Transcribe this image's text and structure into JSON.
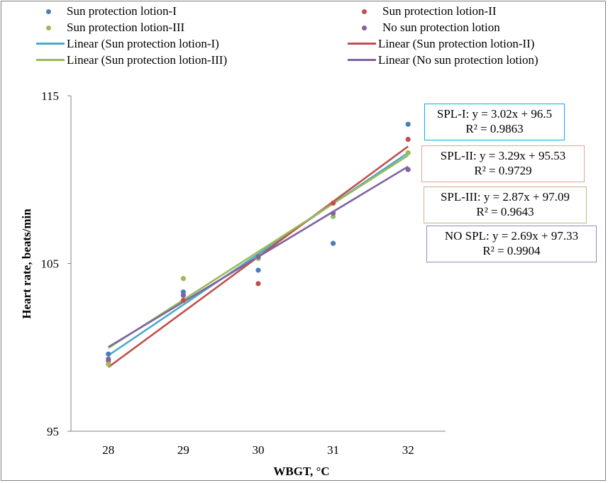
{
  "chart_data": {
    "type": "scatter",
    "xlabel": "WBGT, °C",
    "ylabel": "Heart rate, beats/min",
    "xlim": [
      27.5,
      32.5
    ],
    "ylim": [
      95,
      115
    ],
    "x_ticks": [
      "28",
      "29",
      "30",
      "31",
      "32"
    ],
    "y_ticks": [
      "95",
      "105",
      "115"
    ],
    "grid": false,
    "legend_position": "top",
    "x": [
      28,
      29,
      30,
      31,
      32
    ],
    "series": [
      {
        "name": "Sun protection lotion-I",
        "color": "#4a7ebb",
        "values": [
          99.6,
          103.3,
          104.6,
          106.2,
          113.3
        ],
        "trendline": {
          "name": "Linear (Sun protection lotion-I)",
          "color": "#4bacc6",
          "slope": 3.02,
          "intercept": 96.5
        }
      },
      {
        "name": "Sun protection lotion-II",
        "color": "#c0504d",
        "values": [
          99.2,
          102.8,
          103.8,
          108.6,
          112.4
        ],
        "trendline": {
          "name": "Linear (Sun protection lotion-II)",
          "color": "#c0504d",
          "slope": 3.29,
          "intercept": 95.53
        }
      },
      {
        "name": "Sun protection lotion-III",
        "color": "#9bbb59",
        "values": [
          99.0,
          104.1,
          105.3,
          107.8,
          111.6
        ],
        "trendline": {
          "name": "Linear (Sun protection lotion-III)",
          "color": "#9bbb59",
          "slope": 2.87,
          "intercept": 97.09
        }
      },
      {
        "name": "No sun protection lotion",
        "color": "#8064a2",
        "values": [
          99.3,
          103.1,
          105.4,
          108.0,
          110.6
        ],
        "trendline": {
          "name": "Linear (No sun protection lotion)",
          "color": "#8064a2",
          "slope": 2.69,
          "intercept": 97.33
        }
      }
    ],
    "annotations": [
      {
        "line1": "SPL-I: y = 3.02x + 96.5",
        "line2": "R² = 0.9863",
        "border": "#00b0f0"
      },
      {
        "line1": "SPL-II: y = 3.29x + 95.53",
        "line2": "R² = 0.9729",
        "border": "#e6a0a0"
      },
      {
        "line1": "SPL-III: y = 2.87x + 97.09",
        "line2": "R² = 0.9643",
        "border": "#c4b48c"
      },
      {
        "line1": "NO SPL: y = 2.69x + 97.33",
        "line2": "R² = 0.9904",
        "border": "#9b88c0"
      }
    ]
  }
}
